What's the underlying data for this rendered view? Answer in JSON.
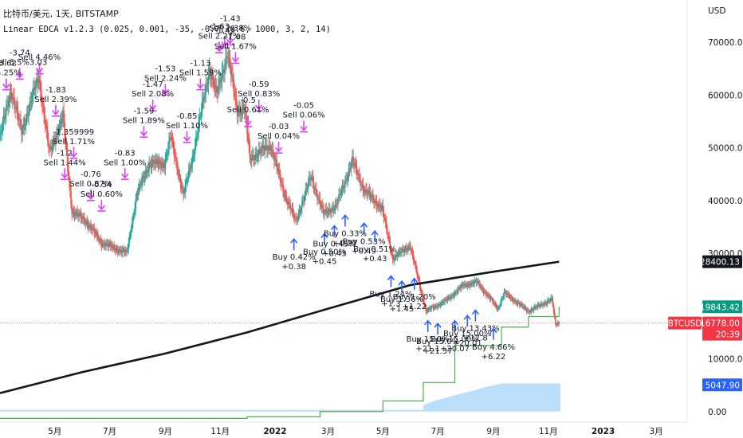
{
  "header": {
    "symbol_line": "比特币/美元, 1天, BITSTAMP",
    "indicator_line": "Linear EDCA v1.2.3 (0.025, 0.001, -35, -0.7, 0.6, 1000, 3, 2, 14)"
  },
  "colors": {
    "up": "#26a69a",
    "down": "#ef5350",
    "sell": "#e040fb",
    "buy": "#2962ff",
    "ma": "#131722",
    "equity": "#4caf50",
    "hist": "#bbdefb",
    "price_badge": "#f23645",
    "ma_badge": "#131722",
    "equity_badge": "#089981",
    "hist_badge": "#2962ff"
  },
  "chart_data": {
    "type": "candlestick",
    "title": "比特币/美元, 1天, BITSTAMP",
    "ylabel": "USD",
    "ylim": [
      -2000,
      78000
    ],
    "grid": false,
    "y_ticks": [
      "0.00",
      "10000.00",
      "20000.00",
      "30000.00",
      "40000.00",
      "50000.00",
      "60000.00",
      "70000.00"
    ],
    "y_tick_values": [
      0,
      10000,
      20000,
      30000,
      40000,
      50000,
      60000,
      70000
    ],
    "x_ticks": [
      "5月",
      "7月",
      "9月",
      "11月",
      "2022",
      "3月",
      "5月",
      "7月",
      "9月",
      "11月",
      "2023",
      "3月"
    ],
    "x_tick_dates": [
      "2021-05-01",
      "2021-07-01",
      "2021-09-01",
      "2021-11-01",
      "2022-01-01",
      "2022-03-01",
      "2022-05-01",
      "2022-07-01",
      "2022-09-01",
      "2022-11-01",
      "2023-01-01",
      "2023-03-01"
    ],
    "x_tick_bold": [
      false,
      false,
      false,
      false,
      true,
      false,
      false,
      false,
      false,
      false,
      true,
      false
    ],
    "x_range": [
      "2021-03-01",
      "2023-04-01"
    ],
    "price_path": [
      [
        "2021-03-01",
        52000
      ],
      [
        "2021-03-13",
        61000
      ],
      [
        "2021-03-25",
        53000
      ],
      [
        "2021-04-13",
        63500
      ],
      [
        "2021-04-25",
        49000
      ],
      [
        "2021-05-10",
        56000
      ],
      [
        "2021-05-20",
        38000
      ],
      [
        "2021-06-05",
        36000
      ],
      [
        "2021-06-22",
        32000
      ],
      [
        "2021-07-20",
        30000
      ],
      [
        "2021-07-31",
        41000
      ],
      [
        "2021-08-14",
        47000
      ],
      [
        "2021-08-31",
        47000
      ],
      [
        "2021-09-07",
        52000
      ],
      [
        "2021-09-21",
        41000
      ],
      [
        "2021-10-01",
        48000
      ],
      [
        "2021-10-20",
        65000
      ],
      [
        "2021-10-28",
        60000
      ],
      [
        "2021-11-09",
        68000
      ],
      [
        "2021-11-20",
        57000
      ],
      [
        "2021-11-28",
        57500
      ],
      [
        "2021-12-04",
        48000
      ],
      [
        "2021-12-27",
        50500
      ],
      [
        "2022-01-10",
        42000
      ],
      [
        "2022-01-24",
        36000
      ],
      [
        "2022-02-10",
        44500
      ],
      [
        "2022-02-24",
        37500
      ],
      [
        "2022-03-10",
        39000
      ],
      [
        "2022-03-28",
        47500
      ],
      [
        "2022-04-10",
        42000
      ],
      [
        "2022-04-30",
        38500
      ],
      [
        "2022-05-12",
        29000
      ],
      [
        "2022-05-31",
        31500
      ],
      [
        "2022-06-13",
        22500
      ],
      [
        "2022-06-18",
        19000
      ],
      [
        "2022-07-10",
        21000
      ],
      [
        "2022-07-30",
        24000
      ],
      [
        "2022-08-14",
        24500
      ],
      [
        "2022-09-06",
        19500
      ],
      [
        "2022-09-13",
        22500
      ],
      [
        "2022-10-10",
        19000
      ],
      [
        "2022-11-05",
        21300
      ],
      [
        "2022-11-09",
        16500
      ],
      [
        "2022-11-13",
        16778
      ]
    ],
    "series": [
      {
        "name": "BTCUSD",
        "last": 16778.0,
        "last_label": "16778.00",
        "countdown": "20:39"
      },
      {
        "last": 28400.13,
        "last_label": "28400.13",
        "points": [
          [
            "2021-03-01",
            3500
          ],
          [
            "2021-06-01",
            7500
          ],
          [
            "2021-09-01",
            11000
          ],
          [
            "2021-12-01",
            15000
          ],
          [
            "2022-03-01",
            19500
          ],
          [
            "2022-06-01",
            24000
          ],
          [
            "2022-09-01",
            26500
          ],
          [
            "2022-11-13",
            28400
          ]
        ]
      },
      {
        "last": 19843.42,
        "last_label": "19843.42",
        "points": [
          [
            "2021-03-01",
            -1300
          ],
          [
            "2021-12-01",
            -1000
          ],
          [
            "2022-02-20",
            0
          ],
          [
            "2022-05-01",
            2000
          ],
          [
            "2022-06-15",
            5500
          ],
          [
            "2022-07-20",
            12500
          ],
          [
            "2022-09-10",
            16000
          ],
          [
            "2022-10-10",
            18000
          ],
          [
            "2022-11-13",
            19843
          ]
        ]
      },
      {
        "last": 5047.9,
        "last_label": "5047.90",
        "points": [
          [
            "2021-03-01",
            0
          ],
          [
            "2022-06-15",
            0
          ],
          [
            "2022-06-16",
            1000
          ],
          [
            "2022-06-25",
            1600
          ],
          [
            "2022-07-10",
            2300
          ],
          [
            "2022-07-25",
            3000
          ],
          [
            "2022-08-10",
            3700
          ],
          [
            "2022-08-25",
            4400
          ],
          [
            "2022-09-10",
            5000
          ],
          [
            "2022-11-13",
            5048
          ]
        ]
      }
    ],
    "annotations": [
      {
        "side": "sell",
        "date": "2021-03-08",
        "price": 61000,
        "lines": [
          "-3.62",
          "l 5.25%"
        ]
      },
      {
        "side": "sell",
        "date": "2021-03-23",
        "price": 63000,
        "lines": [
          "-3.74",
          "Sell 5.5%3.03"
        ]
      },
      {
        "side": "sell",
        "date": "2021-04-14",
        "price": 64000,
        "lines": [
          "Sell 4.46%"
        ]
      },
      {
        "side": "sell",
        "date": "2021-05-02",
        "price": 56000,
        "lines": [
          "-1.83",
          "Sell 2.39%"
        ]
      },
      {
        "side": "sell",
        "date": "2021-05-22",
        "price": 48000,
        "lines": [
          "-1.359999",
          "Sell 1.71%"
        ]
      },
      {
        "side": "sell",
        "date": "2021-05-12",
        "price": 44000,
        "lines": [
          "-1.2",
          "Sell 1.44%"
        ]
      },
      {
        "side": "sell",
        "date": "2021-06-10",
        "price": 40000,
        "lines": [
          "-0.76",
          "Sell 0.87%"
        ]
      },
      {
        "side": "sell",
        "date": "2021-06-22",
        "price": 38000,
        "lines": [
          "-0.54",
          "Sell 0.60%"
        ]
      },
      {
        "side": "sell",
        "date": "2021-07-18",
        "price": 44000,
        "lines": [
          "-0.83",
          "Sell 1.00%"
        ]
      },
      {
        "side": "sell",
        "date": "2021-08-08",
        "price": 52000,
        "lines": [
          "-1.59",
          "Sell 1.89%"
        ]
      },
      {
        "side": "sell",
        "date": "2021-08-18",
        "price": 57000,
        "lines": [
          "-1.47",
          "Sell 2.08%"
        ]
      },
      {
        "side": "sell",
        "date": "2021-09-01",
        "price": 60000,
        "lines": [
          "-1.53",
          "Sell 2.24%"
        ]
      },
      {
        "side": "sell",
        "date": "2021-09-25",
        "price": 51000,
        "lines": [
          "-0.85",
          "Sell 1.10%"
        ]
      },
      {
        "side": "sell",
        "date": "2021-10-10",
        "price": 61000,
        "lines": [
          "-1.13",
          "Sell 1.59%"
        ]
      },
      {
        "side": "sell",
        "date": "2021-10-31",
        "price": 68000,
        "lines": [
          "-1.63",
          "Sell 2.27%"
        ]
      },
      {
        "side": "sell",
        "date": "2021-11-06",
        "price": 69000,
        "lines": [
          "-1.45"
        ]
      },
      {
        "side": "sell",
        "date": "2021-11-12",
        "price": 69500,
        "lines": [
          "-1.43",
          "Sell 2.38%"
        ]
      },
      {
        "side": "sell",
        "date": "2021-11-18",
        "price": 66000,
        "lines": [
          "-1.08",
          "Sell 1.67%"
        ]
      },
      {
        "side": "sell",
        "date": "2021-12-14",
        "price": 57000,
        "lines": [
          "-0.59",
          "Sell 0.83%"
        ]
      },
      {
        "side": "sell",
        "date": "2021-12-02",
        "price": 54000,
        "lines": [
          "-0.5",
          "Sell 0.61%"
        ]
      },
      {
        "side": "sell",
        "date": "2022-01-05",
        "price": 49000,
        "lines": [
          "-0.03",
          "Sell 0.04%"
        ]
      },
      {
        "side": "sell",
        "date": "2022-02-02",
        "price": 53000,
        "lines": [
          "-0.05",
          "Sell 0.06%"
        ]
      },
      {
        "side": "buy",
        "date": "2022-01-22",
        "price": 33000,
        "lines": [
          "Buy 0.42%",
          "+0.38"
        ]
      },
      {
        "side": "buy",
        "date": "2022-02-25",
        "price": 34000,
        "lines": [
          "Buy 0.50%",
          "+0.45"
        ]
      },
      {
        "side": "buy",
        "date": "2022-03-08",
        "price": 35500,
        "lines": [
          "Buy 0.45%",
          "+0.43"
        ]
      },
      {
        "side": "buy",
        "date": "2022-03-20",
        "price": 37500,
        "lines": [
          "Buy 0.33%",
          "+0.27"
        ]
      },
      {
        "side": "buy",
        "date": "2022-04-10",
        "price": 36000,
        "lines": [
          "Buy 0.53%",
          "+0.49"
        ]
      },
      {
        "side": "buy",
        "date": "2022-04-22",
        "price": 34500,
        "lines": [
          "Buy 0.51%",
          "+0.43"
        ]
      },
      {
        "side": "buy",
        "date": "2022-05-10",
        "price": 26000,
        "lines": [
          "Buy 1.24%",
          "+1.3"
        ]
      },
      {
        "side": "buy",
        "date": "2022-05-22",
        "price": 25000,
        "lines": [
          "Buy 1.36%",
          "+1.45"
        ]
      },
      {
        "side": "buy",
        "date": "2022-06-05",
        "price": 25500,
        "lines": [
          "Buy 1.20%",
          "+1.22"
        ]
      },
      {
        "side": "buy",
        "date": "2022-06-20",
        "price": 17500,
        "lines": [
          "Buy 15.0%",
          "+21.1"
        ]
      },
      {
        "side": "buy",
        "date": "2022-07-01",
        "price": 17000,
        "lines": [
          "Buy 15.0%",
          "+21.37"
        ]
      },
      {
        "side": "buy",
        "date": "2022-07-20",
        "price": 17500,
        "lines": [
          "Buy 15.00%",
          "+20.07"
        ]
      },
      {
        "side": "buy",
        "date": "2022-08-03",
        "price": 18500,
        "lines": [
          "Buy 15.00%",
          "+20.01"
        ]
      },
      {
        "side": "buy",
        "date": "2022-08-12",
        "price": 19500,
        "lines": [
          "Buy 13.43%",
          "+17.8"
        ]
      },
      {
        "side": "buy",
        "date": "2022-09-01",
        "price": 16000,
        "lines": [
          "Buy 4.66%",
          "+6.22"
        ]
      }
    ]
  }
}
